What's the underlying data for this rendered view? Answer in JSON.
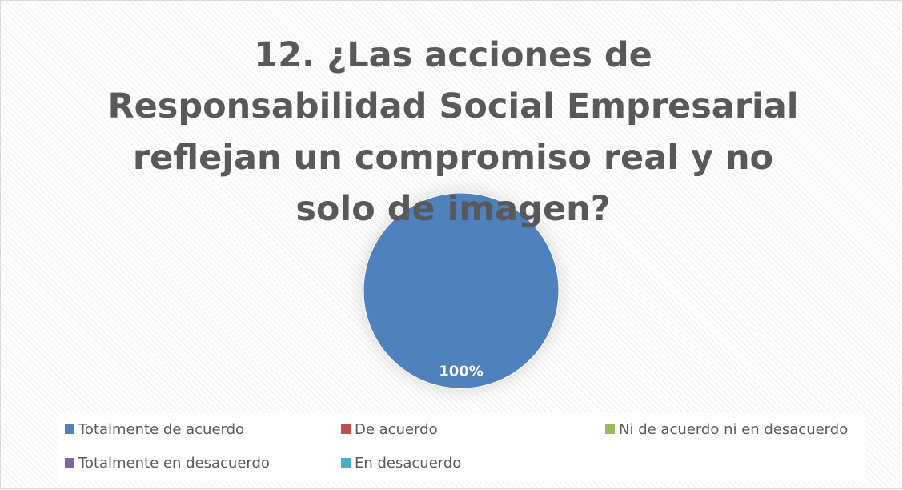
{
  "chart_data": {
    "type": "pie",
    "title": "12. ¿Las acciones de Responsabilidad Social Empresarial reflejan un compromiso real y no solo de imagen?",
    "categories": [
      "Totalmente de acuerdo",
      "De acuerdo",
      "Ni de acuerdo ni en desacuerdo",
      "Totalmente en desacuerdo",
      "En desacuerdo"
    ],
    "values": [
      100,
      0,
      0,
      0,
      0
    ],
    "value_labels": [
      "100%",
      null,
      null,
      null,
      null
    ],
    "colors": [
      "#4f81bd",
      "#c0504d",
      "#9bbb59",
      "#8064a2",
      "#4bacc6"
    ],
    "legend": "bottom"
  }
}
